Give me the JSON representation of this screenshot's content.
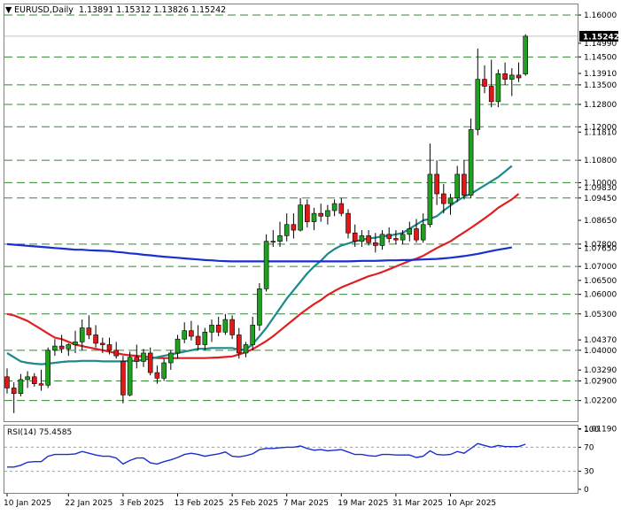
{
  "header": {
    "marker": "▼",
    "symbol": "EURUSD,Daily",
    "ohlc": "1.13891 1.15312 1.13826 1.15242"
  },
  "chart_data": {
    "type": "candlestick",
    "symbol": "EURUSD",
    "timeframe": "Daily",
    "ylim": [
      1.0146,
      1.1638
    ],
    "price_axis_ticks": [
      "1.16000",
      "1.14990",
      "1.14500",
      "1.13910",
      "1.13500",
      "1.12800",
      "1.12000",
      "1.11810",
      "1.10800",
      "1.10000",
      "1.09830",
      "1.09450",
      "1.08650",
      "1.07800",
      "1.07650",
      "1.07000",
      "1.06500",
      "1.06000",
      "1.05300",
      "1.04370",
      "1.04000",
      "1.03290",
      "1.02900",
      "1.02200",
      "1.01190"
    ],
    "dashed_levels": [
      1.16,
      1.145,
      1.135,
      1.128,
      1.12,
      1.108,
      1.1,
      1.0945,
      1.078,
      1.07,
      1.06,
      1.053,
      1.04,
      1.029,
      1.022
    ],
    "last_price": "1.15242",
    "last_price_value": 1.15242,
    "x_labels": [
      {
        "label": "10 Jan 2025",
        "index": 0
      },
      {
        "label": "22 Jan 2025",
        "index": 9
      },
      {
        "label": "3 Feb 2025",
        "index": 17
      },
      {
        "label": "13 Feb 2025",
        "index": 25
      },
      {
        "label": "25 Feb 2025",
        "index": 33
      },
      {
        "label": "7 Mar 2025",
        "index": 41
      },
      {
        "label": "19 Mar 2025",
        "index": 49
      },
      {
        "label": "31 Mar 2025",
        "index": 57
      },
      {
        "label": "10 Apr 2025",
        "index": 65
      }
    ],
    "candles": [
      [
        1.0305,
        1.0335,
        1.0245,
        1.0265
      ],
      [
        1.0265,
        1.0285,
        1.0175,
        1.0245
      ],
      [
        1.0245,
        1.0315,
        1.0235,
        1.0295
      ],
      [
        1.0295,
        1.0325,
        1.0265,
        1.0305
      ],
      [
        1.0305,
        1.0318,
        1.027,
        1.028
      ],
      [
        1.028,
        1.033,
        1.0255,
        1.0275
      ],
      [
        1.0275,
        1.041,
        1.0265,
        1.04
      ],
      [
        1.04,
        1.044,
        1.038,
        1.0415
      ],
      [
        1.0415,
        1.0455,
        1.039,
        1.0405
      ],
      [
        1.0405,
        1.0425,
        1.038,
        1.042
      ],
      [
        1.042,
        1.047,
        1.039,
        1.043
      ],
      [
        1.043,
        1.051,
        1.04,
        1.048
      ],
      [
        1.048,
        1.0525,
        1.044,
        1.0455
      ],
      [
        1.0455,
        1.049,
        1.041,
        1.0425
      ],
      [
        1.0425,
        1.0445,
        1.039,
        1.042
      ],
      [
        1.042,
        1.0445,
        1.0385,
        1.04
      ],
      [
        1.04,
        1.043,
        1.037,
        1.038
      ],
      [
        1.036,
        1.038,
        1.021,
        1.024
      ],
      [
        1.024,
        1.0395,
        1.0235,
        1.0375
      ],
      [
        1.0375,
        1.042,
        1.0335,
        1.036
      ],
      [
        1.036,
        1.0405,
        1.034,
        1.039
      ],
      [
        1.039,
        1.041,
        1.031,
        1.032
      ],
      [
        1.032,
        1.0345,
        1.028,
        1.03
      ],
      [
        1.03,
        1.037,
        1.029,
        1.0355
      ],
      [
        1.0355,
        1.04,
        1.033,
        1.039
      ],
      [
        1.039,
        1.0455,
        1.037,
        1.044
      ],
      [
        1.044,
        1.05,
        1.0425,
        1.047
      ],
      [
        1.047,
        1.0505,
        1.0435,
        1.045
      ],
      [
        1.045,
        1.049,
        1.04,
        1.042
      ],
      [
        1.042,
        1.048,
        1.04,
        1.0465
      ],
      [
        1.0465,
        1.051,
        1.043,
        1.049
      ],
      [
        1.049,
        1.052,
        1.045,
        1.0465
      ],
      [
        1.0465,
        1.053,
        1.0455,
        1.051
      ],
      [
        1.051,
        1.0525,
        1.044,
        1.0455
      ],
      [
        1.0455,
        1.048,
        1.037,
        1.039
      ],
      [
        1.039,
        1.043,
        1.0375,
        1.042
      ],
      [
        1.042,
        1.052,
        1.04,
        1.049
      ],
      [
        1.049,
        1.064,
        1.047,
        1.062
      ],
      [
        1.062,
        1.0815,
        1.061,
        1.079
      ],
      [
        1.079,
        1.083,
        1.077,
        1.079
      ],
      [
        1.079,
        1.086,
        1.077,
        1.081
      ],
      [
        1.081,
        1.089,
        1.079,
        1.085
      ],
      [
        1.085,
        1.089,
        1.08,
        1.083
      ],
      [
        1.083,
        1.0945,
        1.0825,
        1.092
      ],
      [
        1.092,
        1.094,
        1.084,
        1.086
      ],
      [
        1.086,
        1.091,
        1.083,
        1.089
      ],
      [
        1.089,
        1.0925,
        1.086,
        1.088
      ],
      [
        1.088,
        1.092,
        1.085,
        1.09
      ],
      [
        1.09,
        1.094,
        1.088,
        1.0925
      ],
      [
        1.0925,
        1.0945,
        1.088,
        1.089
      ],
      [
        1.089,
        1.0905,
        1.08,
        1.082
      ],
      [
        1.082,
        1.085,
        1.077,
        1.079
      ],
      [
        1.079,
        1.083,
        1.077,
        1.081
      ],
      [
        1.081,
        1.083,
        1.0775,
        1.0785
      ],
      [
        1.0785,
        1.082,
        1.075,
        1.0775
      ],
      [
        1.0775,
        1.083,
        1.076,
        1.0815
      ],
      [
        1.0815,
        1.084,
        1.0785,
        1.08
      ],
      [
        1.08,
        1.083,
        1.078,
        1.0795
      ],
      [
        1.0795,
        1.083,
        1.078,
        1.0815
      ],
      [
        1.0815,
        1.086,
        1.079,
        1.0835
      ],
      [
        1.0835,
        1.087,
        1.0785,
        1.0795
      ],
      [
        1.0795,
        1.089,
        1.0785,
        1.085
      ],
      [
        1.085,
        1.114,
        1.084,
        1.103
      ],
      [
        1.103,
        1.108,
        1.092,
        1.096
      ],
      [
        1.096,
        1.0995,
        1.089,
        1.0925
      ],
      [
        1.0925,
        1.096,
        1.0885,
        1.0945
      ],
      [
        1.0945,
        1.106,
        1.093,
        1.103
      ],
      [
        1.103,
        1.108,
        1.094,
        1.0955
      ],
      [
        1.0955,
        1.123,
        1.0945,
        1.119
      ],
      [
        1.119,
        1.148,
        1.117,
        1.137
      ],
      [
        1.137,
        1.142,
        1.132,
        1.1345
      ],
      [
        1.1345,
        1.144,
        1.127,
        1.129
      ],
      [
        1.129,
        1.1405,
        1.127,
        1.139
      ],
      [
        1.139,
        1.143,
        1.135,
        1.137
      ],
      [
        1.137,
        1.141,
        1.131,
        1.1385
      ],
      [
        1.1385,
        1.143,
        1.136,
        1.1375
      ],
      [
        1.13891,
        1.15312,
        1.13826,
        1.15242
      ]
    ],
    "series": [
      {
        "name": "MA (red)",
        "color": "#e02020",
        "values": [
          1.053,
          1.0525,
          1.0515,
          1.0505,
          1.049,
          1.0475,
          1.046,
          1.0445,
          1.044,
          1.043,
          1.042,
          1.0415,
          1.041,
          1.0405,
          1.04,
          1.0395,
          1.039,
          1.0385,
          1.0382,
          1.038,
          1.0378,
          1.0375,
          1.0372,
          1.0372,
          1.0372,
          1.0372,
          1.0372,
          1.0372,
          1.0372,
          1.0372,
          1.0373,
          1.0374,
          1.0376,
          1.0378,
          1.0385,
          1.0393,
          1.0404,
          1.0418,
          1.0433,
          1.045,
          1.047,
          1.049,
          1.051,
          1.053,
          1.0548,
          1.0565,
          1.058,
          1.0598,
          1.0612,
          1.0625,
          1.0635,
          1.0645,
          1.0655,
          1.0665,
          1.0672,
          1.068,
          1.069,
          1.07,
          1.071,
          1.072,
          1.0728,
          1.0738,
          1.0752,
          1.0766,
          1.0778,
          1.079,
          1.0806,
          1.0822,
          1.0838,
          1.0855,
          1.0872,
          1.089,
          1.091,
          1.0925,
          1.094,
          1.096
        ]
      },
      {
        "name": "MA (teal)",
        "color": "#1a8a8a",
        "values": [
          1.039,
          1.0375,
          1.036,
          1.0355,
          1.0352,
          1.035,
          1.0352,
          1.0355,
          1.0358,
          1.036,
          1.036,
          1.0362,
          1.0362,
          1.0362,
          1.036,
          1.036,
          1.036,
          1.036,
          1.0362,
          1.0362,
          1.0366,
          1.037,
          1.0375,
          1.038,
          1.0385,
          1.039,
          1.0395,
          1.04,
          1.0405,
          1.0405,
          1.0408,
          1.0408,
          1.0408,
          1.0408,
          1.0402,
          1.0402,
          1.0422,
          1.045,
          1.048,
          1.0515,
          1.055,
          1.0585,
          1.0615,
          1.0645,
          1.0675,
          1.07,
          1.072,
          1.0745,
          1.0762,
          1.0775,
          1.0782,
          1.079,
          1.0795,
          1.08,
          1.0803,
          1.0808,
          1.081,
          1.0815,
          1.082,
          1.0835,
          1.085,
          1.0865,
          1.087,
          1.088,
          1.09,
          1.0918,
          1.0935,
          1.095,
          1.096,
          1.0975,
          1.099,
          1.1005,
          1.102,
          1.104,
          1.106
        ]
      },
      {
        "name": "MA (blue)",
        "color": "#1a2fd0",
        "values": [
          1.078,
          1.0778,
          1.0776,
          1.0774,
          1.0772,
          1.077,
          1.0768,
          1.0766,
          1.0764,
          1.0762,
          1.076,
          1.076,
          1.0758,
          1.0757,
          1.0756,
          1.0755,
          1.0752,
          1.075,
          1.0747,
          1.0745,
          1.0742,
          1.074,
          1.0737,
          1.0735,
          1.0733,
          1.0731,
          1.0729,
          1.0727,
          1.0725,
          1.0723,
          1.0722,
          1.072,
          1.0719,
          1.0718,
          1.0718,
          1.0718,
          1.0718,
          1.0718,
          1.0718,
          1.0718,
          1.0718,
          1.0718,
          1.0718,
          1.0718,
          1.0718,
          1.0718,
          1.0718,
          1.0718,
          1.0718,
          1.0718,
          1.0718,
          1.0719,
          1.072,
          1.072,
          1.072,
          1.0721,
          1.0722,
          1.0722,
          1.0723,
          1.0723,
          1.0724,
          1.0725,
          1.0726,
          1.0727,
          1.0729,
          1.0731,
          1.0734,
          1.0737,
          1.0741,
          1.0745,
          1.075,
          1.0755,
          1.076,
          1.0764,
          1.0768
        ]
      }
    ],
    "rsi": {
      "label": "RSI(14) 75.4585",
      "ylim": [
        0,
        100
      ],
      "ticks": [
        "100",
        "70",
        "30",
        "0"
      ],
      "levels": [
        70,
        30
      ],
      "color": "#1a2fd0",
      "values": [
        37,
        37,
        40,
        45,
        46,
        46,
        55,
        58,
        58,
        58,
        59,
        63,
        60,
        57,
        55,
        55,
        52,
        42,
        48,
        52,
        52,
        44,
        42,
        46,
        49,
        53,
        58,
        60,
        58,
        55,
        57,
        59,
        62,
        55,
        54,
        56,
        59,
        66,
        68,
        68,
        69,
        70,
        70,
        72,
        68,
        65,
        66,
        64,
        65,
        66,
        62,
        58,
        58,
        56,
        55,
        58,
        58,
        57,
        57,
        57,
        53,
        55,
        64,
        58,
        57,
        58,
        63,
        60,
        68,
        76,
        73,
        70,
        73,
        71,
        71,
        71,
        75
      ]
    }
  }
}
